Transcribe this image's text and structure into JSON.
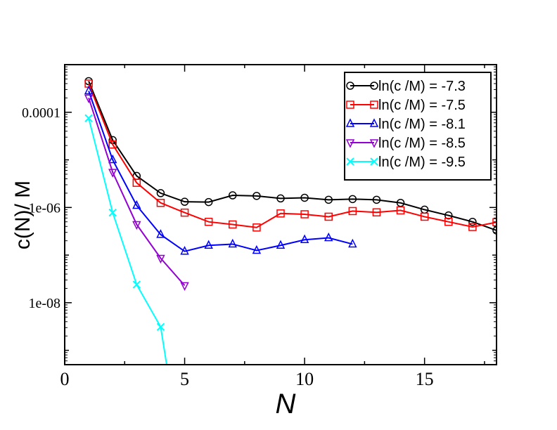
{
  "chart_data": {
    "type": "line",
    "title": "",
    "xlabel": "N",
    "ylabel": "c(N)/ M",
    "y_scale": "log",
    "xlim": [
      0,
      18
    ],
    "ylim": [
      5e-10,
      0.001
    ],
    "x_ticks": [
      0,
      5,
      10,
      15
    ],
    "x_tick_labels": [
      "0",
      "5",
      "10",
      "15"
    ],
    "y_ticks": [
      0.0001,
      1e-06,
      1e-08
    ],
    "y_tick_labels": [
      "0.0001",
      "1e-06",
      "1e-08"
    ],
    "grid": false,
    "legend_position": "top-right",
    "series": [
      {
        "name": "ln(c /M) = -7.3",
        "color": "#000000",
        "marker": "circle",
        "x": [
          1,
          2,
          3,
          4,
          5,
          6,
          7,
          8,
          9,
          10,
          11,
          12,
          13,
          14,
          15,
          16,
          17,
          18
        ],
        "y": [
          0.00045,
          2.6e-05,
          4.6e-06,
          2e-06,
          1.32e-06,
          1.3e-06,
          1.8e-06,
          1.75e-06,
          1.55e-06,
          1.6e-06,
          1.45e-06,
          1.5e-06,
          1.45e-06,
          1.25e-06,
          9e-07,
          6.8e-07,
          5e-07,
          3.3e-07
        ]
      },
      {
        "name": "ln(c /M) = -7.5",
        "color": "#ff0000",
        "marker": "square",
        "x": [
          1,
          2,
          3,
          4,
          5,
          6,
          7,
          8,
          9,
          10,
          11,
          12,
          13,
          14,
          15,
          16,
          17,
          18
        ],
        "y": [
          0.0004,
          2.1e-05,
          3.3e-06,
          1.25e-06,
          7.8e-07,
          5e-07,
          4.4e-07,
          3.8e-07,
          7.5e-07,
          7.2e-07,
          6.4e-07,
          8.4e-07,
          7.9e-07,
          8.7e-07,
          6.4e-07,
          5e-07,
          3.9e-07,
          4.9e-07
        ]
      },
      {
        "name": "ln(c /M) = -8.1",
        "color": "#0000ff",
        "marker": "triangle-up",
        "x": [
          1,
          2,
          3,
          4,
          5,
          6,
          7,
          8,
          9,
          10,
          11,
          12
        ],
        "y": [
          0.00028,
          1e-05,
          1.1e-06,
          2.7e-07,
          1.2e-07,
          1.6e-07,
          1.7e-07,
          1.25e-07,
          1.6e-07,
          2.1e-07,
          2.3e-07,
          1.7e-07
        ]
      },
      {
        "name": "ln(c /M) = -8.5",
        "color": "#9400d3",
        "marker": "triangle-down",
        "x": [
          1,
          2,
          3,
          4,
          5
        ],
        "y": [
          0.0002,
          5.5e-06,
          4.4e-07,
          8.6e-08,
          2.3e-08
        ]
      },
      {
        "name": "ln(c /M) = -9.5",
        "color": "#00ffff",
        "marker": "x",
        "x": [
          1,
          2,
          3,
          4,
          4.25
        ],
        "y": [
          7.5e-05,
          7.8e-07,
          2.4e-08,
          3.1e-09,
          5e-10
        ]
      }
    ]
  }
}
